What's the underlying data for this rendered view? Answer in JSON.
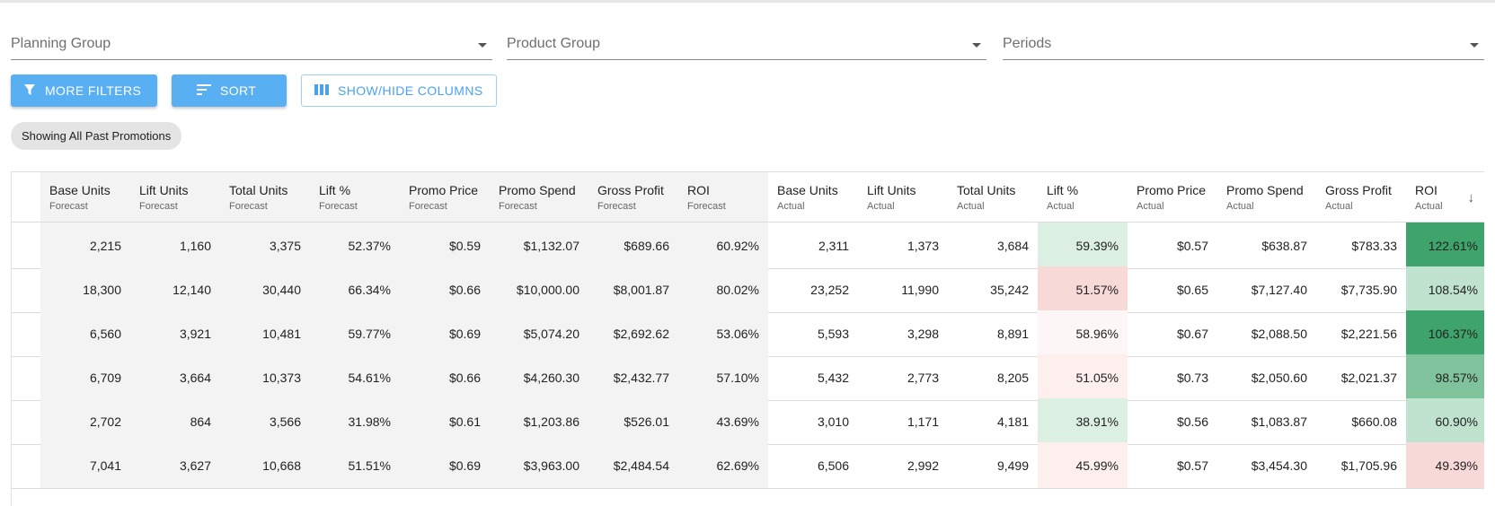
{
  "filters": {
    "planning_group": "Planning Group",
    "product_group": "Product Group",
    "periods": "Periods"
  },
  "toolbar": {
    "more_filters": "MORE FILTERS",
    "sort": "SORT",
    "show_hide_columns": "SHOW/HIDE COLUMNS"
  },
  "chip": "Showing All Past Promotions",
  "colors": {
    "primary": "#58aff2",
    "green_strong": "#3fa46b",
    "green_mid": "#7fc29c",
    "green_light": "#bfe3cf",
    "green_pale": "#dcefe3",
    "red_light": "#f7d9d7",
    "red_pale": "#fcefee"
  },
  "table": {
    "columns": [
      {
        "title": "Base Units",
        "sub": "Forecast"
      },
      {
        "title": "Lift Units",
        "sub": "Forecast"
      },
      {
        "title": "Total Units",
        "sub": "Forecast"
      },
      {
        "title": "Lift %",
        "sub": "Forecast"
      },
      {
        "title": "Promo Price",
        "sub": "Forecast"
      },
      {
        "title": "Promo Spend",
        "sub": "Forecast"
      },
      {
        "title": "Gross Profit",
        "sub": "Forecast"
      },
      {
        "title": "ROI",
        "sub": "Forecast"
      },
      {
        "title": "Base Units",
        "sub": "Actual"
      },
      {
        "title": "Lift Units",
        "sub": "Actual"
      },
      {
        "title": "Total Units",
        "sub": "Actual"
      },
      {
        "title": "Lift %",
        "sub": "Actual"
      },
      {
        "title": "Promo Price",
        "sub": "Actual"
      },
      {
        "title": "Promo Spend",
        "sub": "Actual"
      },
      {
        "title": "Gross Profit",
        "sub": "Actual"
      },
      {
        "title": "ROI",
        "sub": "Actual"
      }
    ],
    "sort_icon": "arrow-down-icon",
    "rows": [
      {
        "cells": [
          "2,215",
          "1,160",
          "3,375",
          "52.37%",
          "$0.59",
          "$1,132.07",
          "$689.66",
          "60.92%",
          "2,311",
          "1,373",
          "3,684",
          "59.39%",
          "$0.57",
          "$638.87",
          "$783.33",
          "122.61%"
        ],
        "lift_color": "#dcefe3",
        "roi_color": "#3fa46b"
      },
      {
        "cells": [
          "18,300",
          "12,140",
          "30,440",
          "66.34%",
          "$0.66",
          "$10,000.00",
          "$8,001.87",
          "80.02%",
          "23,252",
          "11,990",
          "35,242",
          "51.57%",
          "$0.65",
          "$7,127.40",
          "$7,735.90",
          "108.54%"
        ],
        "lift_color": "#f7d9d7",
        "roi_color": "#bfe3cf"
      },
      {
        "cells": [
          "6,560",
          "3,921",
          "10,481",
          "59.77%",
          "$0.69",
          "$5,074.20",
          "$2,692.62",
          "53.06%",
          "5,593",
          "3,298",
          "8,891",
          "58.96%",
          "$0.67",
          "$2,088.50",
          "$2,221.56",
          "106.37%"
        ],
        "lift_color": "#fdf6f6",
        "roi_color": "#3fa46b"
      },
      {
        "cells": [
          "6,709",
          "3,664",
          "10,373",
          "54.61%",
          "$0.66",
          "$4,260.30",
          "$2,432.77",
          "57.10%",
          "5,432",
          "2,773",
          "8,205",
          "51.05%",
          "$0.73",
          "$2,050.60",
          "$2,021.37",
          "98.57%"
        ],
        "lift_color": "#fcefee",
        "roi_color": "#7fc29c"
      },
      {
        "cells": [
          "2,702",
          "864",
          "3,566",
          "31.98%",
          "$0.61",
          "$1,203.86",
          "$526.01",
          "43.69%",
          "3,010",
          "1,171",
          "4,181",
          "38.91%",
          "$0.56",
          "$1,083.87",
          "$660.08",
          "60.90%"
        ],
        "lift_color": "#dcefe3",
        "roi_color": "#bfe3cf"
      },
      {
        "cells": [
          "7,041",
          "3,627",
          "10,668",
          "51.51%",
          "$0.69",
          "$3,963.00",
          "$2,484.54",
          "62.69%",
          "6,506",
          "2,992",
          "9,499",
          "45.99%",
          "$0.57",
          "$3,454.30",
          "$1,705.96",
          "49.39%"
        ],
        "lift_color": "#fcefee",
        "roi_color": "#f7d9d7"
      }
    ]
  }
}
